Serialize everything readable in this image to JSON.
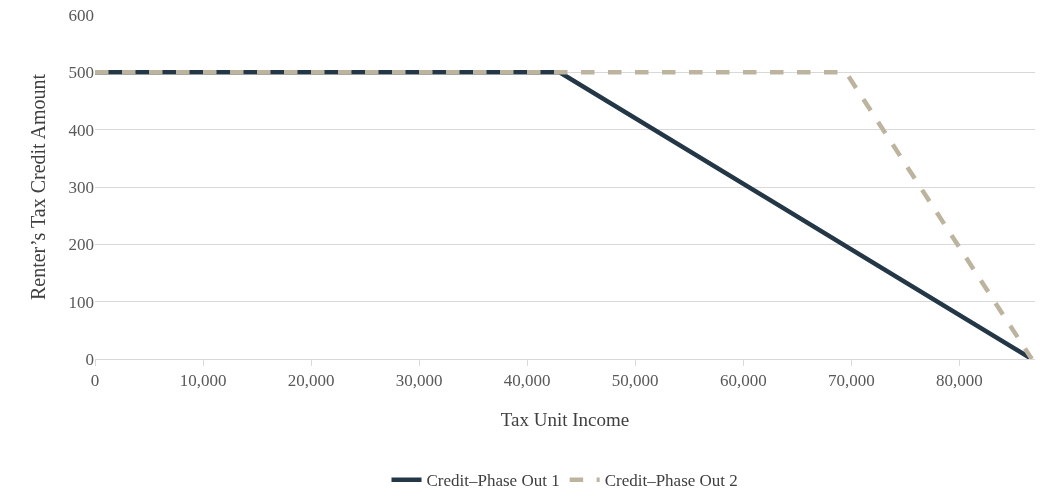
{
  "chart_data": {
    "type": "line",
    "xlabel": "Tax Unit Income",
    "ylabel": "Renter’s Tax Credit Amount",
    "xlim": [
      0,
      87000
    ],
    "xticks": [
      {
        "value": 0,
        "label": "0"
      },
      {
        "value": 10000,
        "label": "10,000"
      },
      {
        "value": 20000,
        "label": "20,000"
      },
      {
        "value": 30000,
        "label": "30,000"
      },
      {
        "value": 40000,
        "label": "40,000"
      },
      {
        "value": 50000,
        "label": "50,000"
      },
      {
        "value": 60000,
        "label": "60,000"
      },
      {
        "value": 70000,
        "label": "70,000"
      },
      {
        "value": 80000,
        "label": "80,000"
      }
    ],
    "ylim": [
      0,
      600
    ],
    "yticks": [
      0,
      100,
      200,
      300,
      400,
      500,
      600
    ],
    "grid": "y",
    "legend": "bottom",
    "marker": "none",
    "series": [
      {
        "name": "Credit–Phase Out 1",
        "color": "#243746",
        "x": [
          0,
          43000,
          86700
        ],
        "values": [
          500,
          500,
          0
        ],
        "line_style": "solid"
      },
      {
        "name": "Credit–Phase Out 2",
        "color": "#bcb49e",
        "x": [
          0,
          69500,
          86700
        ],
        "values": [
          500,
          500,
          0
        ],
        "line_style": "dashed"
      }
    ]
  }
}
